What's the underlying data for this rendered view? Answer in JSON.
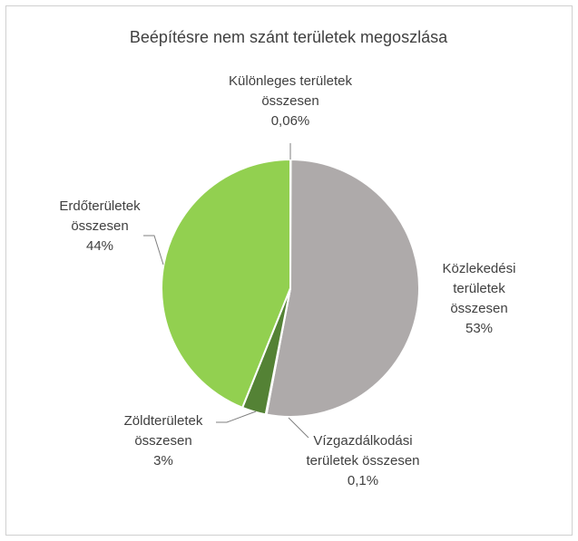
{
  "chart_data": {
    "type": "pie",
    "title": "Beépítésre nem szánt területek megoszlása",
    "categories": [
      "Különleges területek összesen",
      "Közlekedési területek összesen",
      "Vízgazdálkodási területek összesen",
      "Zöldterületek összesen",
      "Erdőterületek összesen"
    ],
    "values": [
      0.06,
      53,
      0.1,
      3,
      44
    ],
    "value_labels": [
      "0,06%",
      "53%",
      "0,1%",
      "3%",
      "44%"
    ],
    "colors": [
      "#ffc000",
      "#aeaaaa",
      "#5b9bd5",
      "#548235",
      "#92d050"
    ]
  }
}
